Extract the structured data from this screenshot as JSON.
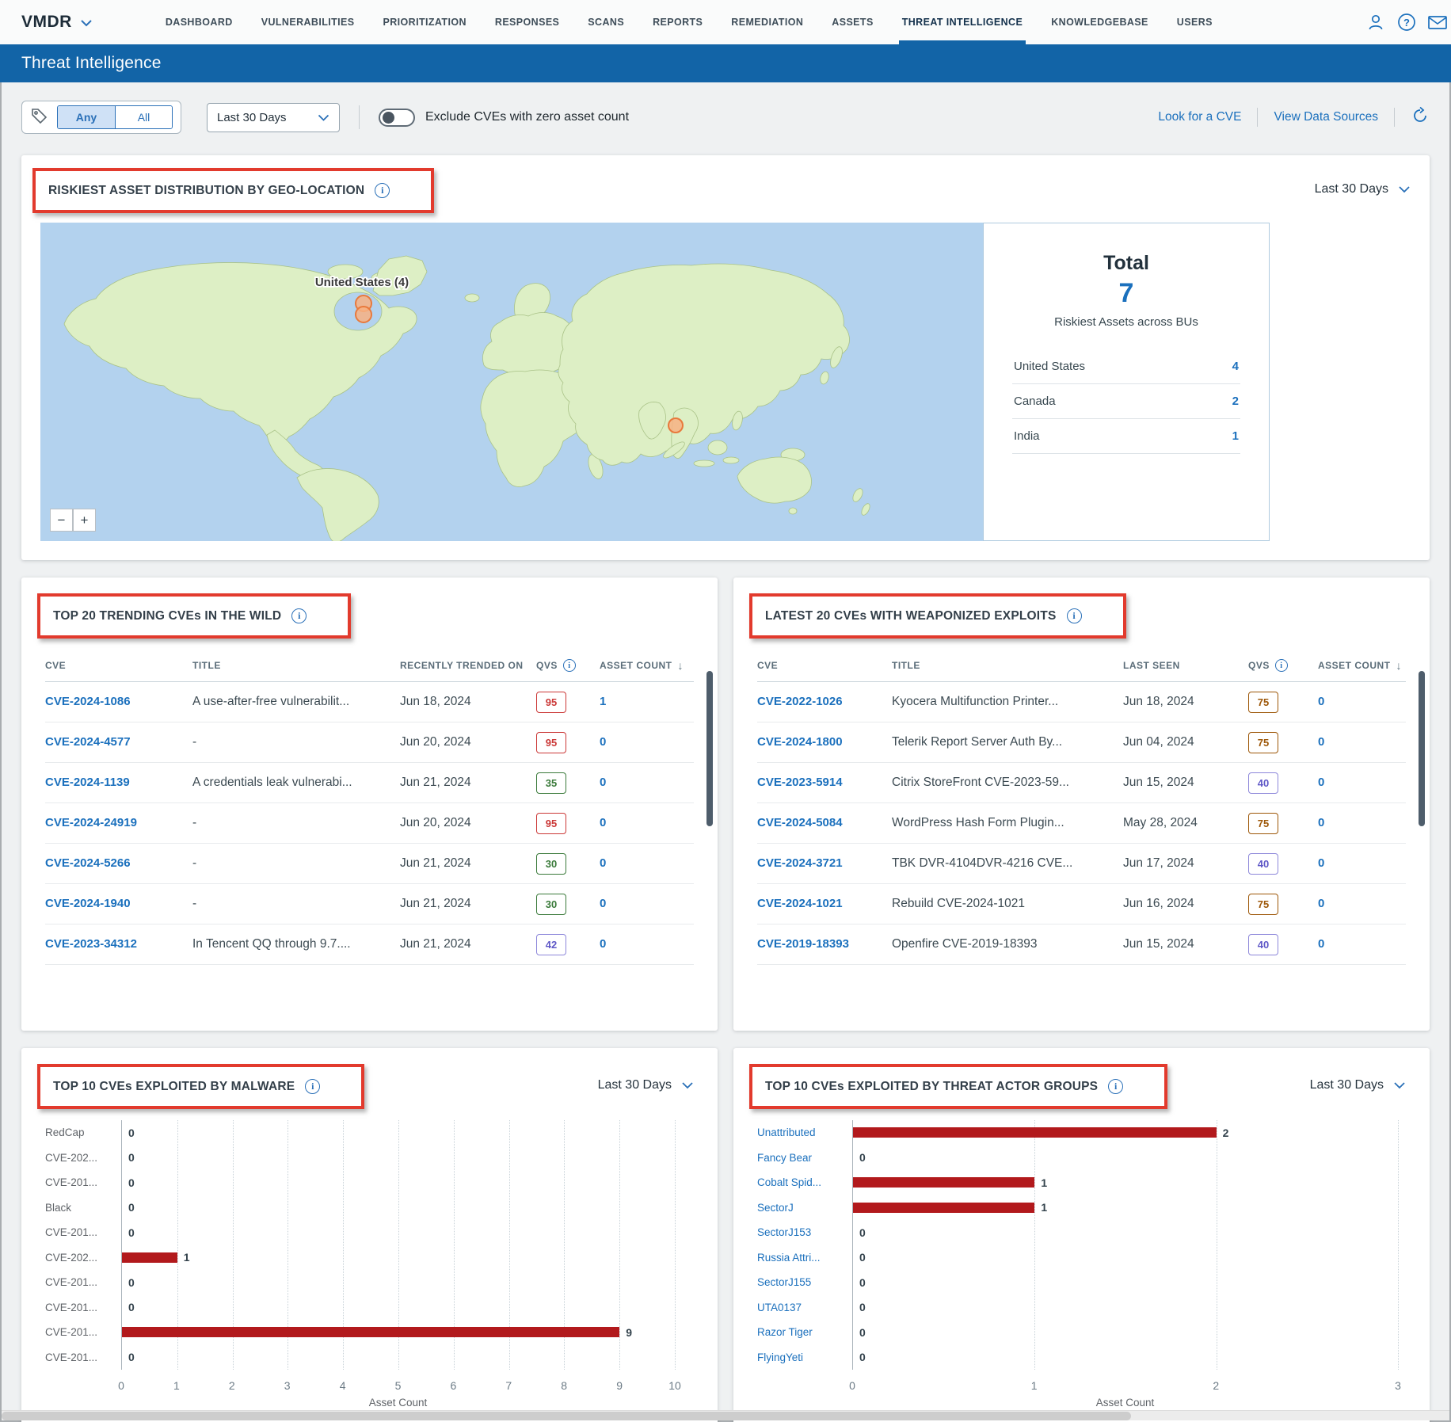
{
  "nav": {
    "brand": "VMDR",
    "items": [
      "DASHBOARD",
      "VULNERABILITIES",
      "PRIORITIZATION",
      "RESPONSES",
      "SCANS",
      "REPORTS",
      "REMEDIATION",
      "ASSETS",
      "THREAT INTELLIGENCE",
      "KNOWLEDGEBASE",
      "USERS"
    ],
    "active_index": 8,
    "icons": [
      "user-icon",
      "help-icon",
      "mail-icon"
    ]
  },
  "header": {
    "title": "Threat Intelligence"
  },
  "toolbar": {
    "filter_any": "Any",
    "filter_all": "All",
    "date_range": "Last 30 Days",
    "exclude_toggle_label": "Exclude CVEs with zero asset count",
    "look_for_cve": "Look for a CVE",
    "view_data_sources": "View Data Sources"
  },
  "geo": {
    "title": "RISKIEST ASSET DISTRIBUTION BY GEO-LOCATION",
    "date_range": "Last 30 Days",
    "map_marker_label": "United States (4)",
    "zoom_out": "−",
    "zoom_in": "+",
    "total": {
      "heading": "Total",
      "value": "7",
      "subtitle": "Riskiest Assets across BUs",
      "rows": [
        {
          "name": "United States",
          "value": "4"
        },
        {
          "name": "Canada",
          "value": "2"
        },
        {
          "name": "India",
          "value": "1"
        }
      ]
    }
  },
  "trending": {
    "title": "TOP 20 TRENDING CVEs IN THE WILD",
    "columns": {
      "cve": "CVE",
      "title": "TITLE",
      "date": "RECENTLY TRENDED ON",
      "qvs": "QVS",
      "asset_count": "ASSET COUNT"
    },
    "rows": [
      {
        "cve": "CVE-2024-1086",
        "title": "A use-after-free vulnerabilit...",
        "date": "Jun 18, 2024",
        "qvs": "95",
        "qvs_level": "red",
        "asset_count": "1"
      },
      {
        "cve": "CVE-2024-4577",
        "title": "-",
        "date": "Jun 20, 2024",
        "qvs": "95",
        "qvs_level": "red",
        "asset_count": "0"
      },
      {
        "cve": "CVE-2024-1139",
        "title": "A credentials leak vulnerabi...",
        "date": "Jun 21, 2024",
        "qvs": "35",
        "qvs_level": "green",
        "asset_count": "0"
      },
      {
        "cve": "CVE-2024-24919",
        "title": "-",
        "date": "Jun 20, 2024",
        "qvs": "95",
        "qvs_level": "red",
        "asset_count": "0"
      },
      {
        "cve": "CVE-2024-5266",
        "title": "-",
        "date": "Jun 21, 2024",
        "qvs": "30",
        "qvs_level": "green",
        "asset_count": "0"
      },
      {
        "cve": "CVE-2024-1940",
        "title": "-",
        "date": "Jun 21, 2024",
        "qvs": "30",
        "qvs_level": "green",
        "asset_count": "0"
      },
      {
        "cve": "CVE-2023-34312",
        "title": "In Tencent QQ through 9.7....",
        "date": "Jun 21, 2024",
        "qvs": "42",
        "qvs_level": "purple",
        "asset_count": "0"
      }
    ]
  },
  "weaponized": {
    "title": "LATEST 20 CVEs WITH WEAPONIZED EXPLOITS",
    "columns": {
      "cve": "CVE",
      "title": "TITLE",
      "date": "LAST SEEN",
      "qvs": "QVS",
      "asset_count": "ASSET COUNT"
    },
    "rows": [
      {
        "cve": "CVE-2022-1026",
        "title": "Kyocera Multifunction Printer...",
        "date": "Jun 18, 2024",
        "qvs": "75",
        "qvs_level": "orange",
        "asset_count": "0"
      },
      {
        "cve": "CVE-2024-1800",
        "title": "Telerik Report Server Auth By...",
        "date": "Jun 04, 2024",
        "qvs": "75",
        "qvs_level": "orange",
        "asset_count": "0"
      },
      {
        "cve": "CVE-2023-5914",
        "title": "Citrix StoreFront CVE-2023-59...",
        "date": "Jun 15, 2024",
        "qvs": "40",
        "qvs_level": "purple",
        "asset_count": "0"
      },
      {
        "cve": "CVE-2024-5084",
        "title": "WordPress Hash Form Plugin...",
        "date": "May 28, 2024",
        "qvs": "75",
        "qvs_level": "orange",
        "asset_count": "0"
      },
      {
        "cve": "CVE-2024-3721",
        "title": "TBK DVR-4104DVR-4216 CVE...",
        "date": "Jun 17, 2024",
        "qvs": "40",
        "qvs_level": "purple",
        "asset_count": "0"
      },
      {
        "cve": "CVE-2024-1021",
        "title": "Rebuild CVE-2024-1021",
        "date": "Jun 16, 2024",
        "qvs": "75",
        "qvs_level": "orange",
        "asset_count": "0"
      },
      {
        "cve": "CVE-2019-18393",
        "title": "Openfire CVE-2019-18393",
        "date": "Jun 15, 2024",
        "qvs": "40",
        "qvs_level": "purple",
        "asset_count": "0"
      }
    ]
  },
  "malware_chart": {
    "title": "TOP 10 CVEs EXPLOITED BY MALWARE",
    "date_range": "Last 30 Days",
    "chart_data": {
      "type": "bar",
      "orientation": "horizontal",
      "categories": [
        "RedCap",
        "CVE-202...",
        "CVE-201...",
        "Black",
        "CVE-201...",
        "CVE-202...",
        "CVE-201...",
        "CVE-201...",
        "CVE-201...",
        "CVE-201..."
      ],
      "values": [
        0,
        0,
        0,
        0,
        0,
        1,
        0,
        0,
        9,
        0
      ],
      "xlabel": "Asset Count",
      "xlim": [
        0,
        10
      ],
      "ticks": [
        "0",
        "1",
        "2",
        "3",
        "4",
        "5",
        "6",
        "7",
        "8",
        "9",
        "10"
      ],
      "bar_color": "#b2191c",
      "grid": "dotted-vertical"
    }
  },
  "actor_chart": {
    "title": "TOP 10 CVEs EXPLOITED BY THREAT ACTOR GROUPS",
    "date_range": "Last 30 Days",
    "chart_data": {
      "type": "bar",
      "orientation": "horizontal",
      "categories": [
        "Unattributed",
        "Fancy Bear",
        "Cobalt Spid...",
        "SectorJ",
        "SectorJ153",
        "Russia Attri...",
        "SectorJ155",
        "UTA0137",
        "Razor Tiger",
        "FlyingYeti"
      ],
      "values": [
        2,
        0,
        1,
        1,
        0,
        0,
        0,
        0,
        0,
        0
      ],
      "xlabel": "Asset Count",
      "xlim": [
        0,
        3
      ],
      "ticks": [
        "0",
        "1",
        "2",
        "3"
      ],
      "bar_color": "#b2191c",
      "grid": "dotted-vertical"
    }
  }
}
